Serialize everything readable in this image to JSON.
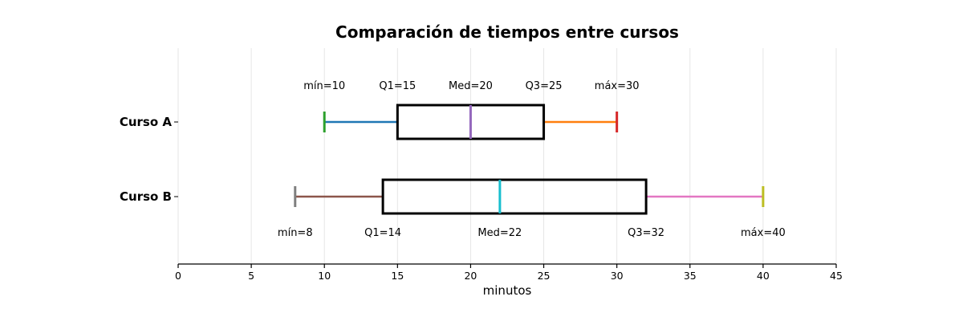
{
  "chart_data": {
    "type": "boxplot",
    "title": "Comparación de tiempos entre cursos",
    "xlabel": "minutos",
    "ylabel": "",
    "xlim": [
      0,
      45
    ],
    "xticks": [
      0,
      5,
      10,
      15,
      20,
      25,
      30,
      35,
      40,
      45
    ],
    "grid": "vertical",
    "series": [
      {
        "name": "Curso A",
        "min": 10,
        "q1": 15,
        "median": 20,
        "q3": 25,
        "max": 30,
        "labels": {
          "min": "mín=10",
          "q1": "Q1=15",
          "median": "Med=20",
          "q3": "Q3=25",
          "max": "máx=30"
        },
        "label_position": "above",
        "colors": {
          "min": "#2ca02c",
          "lower_whisker": "#1f77b4",
          "median": "#9467bd",
          "upper_whisker": "#ff7f0e",
          "max": "#d62728"
        }
      },
      {
        "name": "Curso B",
        "min": 8,
        "q1": 14,
        "median": 22,
        "q3": 32,
        "max": 40,
        "labels": {
          "min": "mín=8",
          "q1": "Q1=14",
          "median": "Med=22",
          "q3": "Q3=32",
          "max": "máx=40"
        },
        "label_position": "below",
        "colors": {
          "min": "#7f7f7f",
          "lower_whisker": "#8c564b",
          "median": "#17becf",
          "upper_whisker": "#e377c2",
          "max": "#bcbd22"
        }
      }
    ]
  }
}
